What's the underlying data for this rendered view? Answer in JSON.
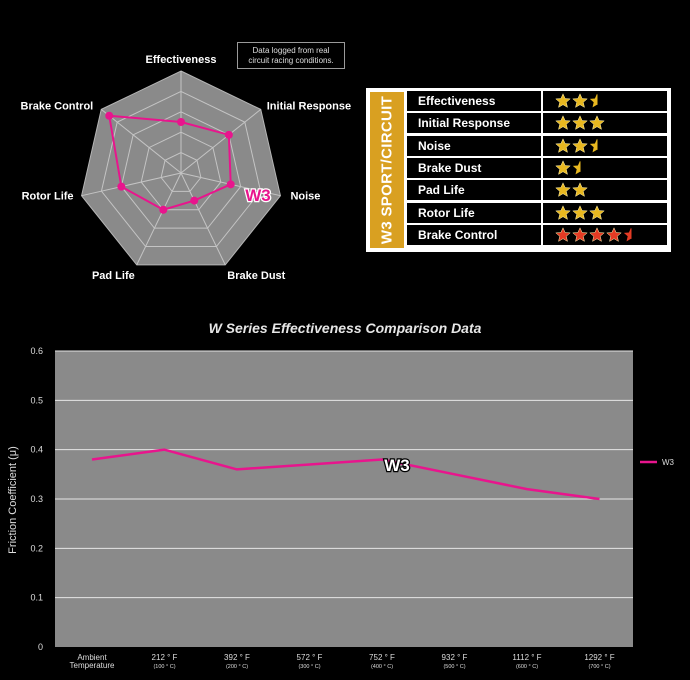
{
  "note": {
    "line1": "Data logged from real",
    "line2": "circuit racing conditions."
  },
  "rating_card": {
    "brand": "W3 SPORT/CIRCUIT",
    "items": [
      {
        "label": "Effectiveness",
        "stars": 2.5,
        "color": "#e8b820"
      },
      {
        "label": "Initial Response",
        "stars": 3,
        "color": "#e8b820"
      },
      {
        "label": "Noise",
        "stars": 2.5,
        "color": "#e8b820"
      },
      {
        "label": "Brake Dust",
        "stars": 1.5,
        "color": "#e8b820"
      },
      {
        "label": "Pad Life",
        "stars": 2,
        "color": "#e8b820"
      },
      {
        "label": "Rotor Life",
        "stars": 3,
        "color": "#e8b820"
      },
      {
        "label": "Brake Control",
        "stars": 4.5,
        "color": "#e43b24"
      }
    ]
  },
  "radar_badge": "W3",
  "line_badge": "W3",
  "chart_data": [
    {
      "type": "radar",
      "axes": [
        "Effectiveness",
        "Initial Response",
        "Noise",
        "Brake Dust",
        "Pad Life",
        "Rotor Life",
        "Brake Control"
      ],
      "max": 5,
      "levels": 5,
      "series": [
        {
          "values": [
            2.5,
            3,
            2.5,
            1.5,
            2,
            3,
            4.5
          ],
          "color": "#e8158d"
        }
      ]
    },
    {
      "type": "line",
      "title": "W Series Effectiveness Comparison Data",
      "xlabel": "",
      "ylabel": "Friction Coefficient (μ)",
      "categories": [
        {
          "line1": "Ambient",
          "line2": "Temperature"
        },
        {
          "line1": "212 ° F",
          "line2": "(100 ° C)"
        },
        {
          "line1": "392 ° F",
          "line2": "(200 ° C)"
        },
        {
          "line1": "572 ° F",
          "line2": "(300 ° C)"
        },
        {
          "line1": "752 ° F",
          "line2": "(400 ° C)"
        },
        {
          "line1": "932 ° F",
          "line2": "(500 ° C)"
        },
        {
          "line1": "1112 ° F",
          "line2": "(600 ° C)"
        },
        {
          "line1": "1292 ° F",
          "line2": "(700 ° C)"
        }
      ],
      "ylim": [
        0,
        0.6
      ],
      "yticks": [
        "0",
        "0.1",
        "0.2",
        "0.3",
        "0.4",
        "0.5",
        "0.6"
      ],
      "grid": true,
      "legend": "right",
      "series": [
        {
          "name": "W3",
          "values": [
            0.38,
            0.4,
            0.36,
            0.37,
            0.38,
            0.35,
            0.32,
            0.3
          ],
          "color": "#e8158d"
        }
      ]
    }
  ]
}
